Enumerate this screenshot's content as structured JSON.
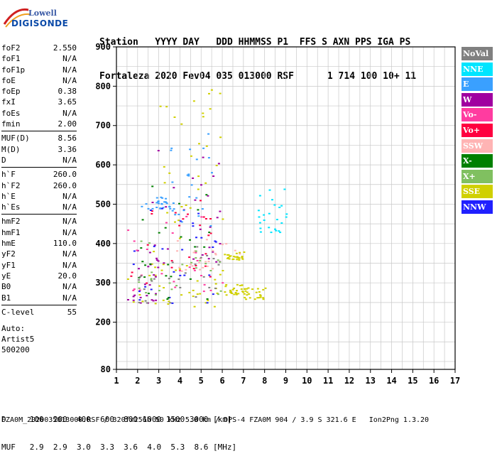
{
  "logo": {
    "line1": "Lowell",
    "line2": "DIGISONDE"
  },
  "header": {
    "line1": "Station   YYYY DAY   DDD HHMMSS P1  FFS S AXN PPS IGA PS",
    "line2": "Fortaleza 2020 Fev04 035 013000 RSF      1 714 100 10+ 11"
  },
  "params": [
    {
      "k": "foF2",
      "v": "2.550"
    },
    {
      "k": "foF1",
      "v": "N/A"
    },
    {
      "k": "foF1p",
      "v": "N/A"
    },
    {
      "k": "foE",
      "v": "N/A"
    },
    {
      "k": "foEp",
      "v": "0.38"
    },
    {
      "k": "fxI",
      "v": "3.65"
    },
    {
      "k": "foEs",
      "v": "N/A"
    },
    {
      "k": "fmin",
      "v": "2.00"
    },
    {
      "k": "MUF(D)",
      "v": "8.56"
    },
    {
      "k": "M(D)",
      "v": "3.36"
    },
    {
      "k": "D",
      "v": "N/A"
    },
    {
      "k": "h`F",
      "v": "260.0"
    },
    {
      "k": "h`F2",
      "v": "260.0"
    },
    {
      "k": "h`E",
      "v": "N/A"
    },
    {
      "k": "h`Es",
      "v": "N/A"
    },
    {
      "k": "hmF2",
      "v": "N/A"
    },
    {
      "k": "hmF1",
      "v": "N/A"
    },
    {
      "k": "hmE",
      "v": "110.0"
    },
    {
      "k": "yF2",
      "v": "N/A"
    },
    {
      "k": "yF1",
      "v": "N/A"
    },
    {
      "k": "yE",
      "v": "20.0"
    },
    {
      "k": "B0",
      "v": "N/A"
    },
    {
      "k": "B1",
      "v": "N/A"
    },
    {
      "k": "C-level",
      "v": "55"
    }
  ],
  "auto": {
    "l1": "Auto:",
    "l2": "Artist5",
    "l3": "500200"
  },
  "legend": [
    {
      "name": "NoVal",
      "color": "#808080"
    },
    {
      "name": "NNE",
      "color": "#00e5ff"
    },
    {
      "name": "E",
      "color": "#3aa0ff"
    },
    {
      "name": "W",
      "color": "#a000a0"
    },
    {
      "name": "Vo-",
      "color": "#ff3ca0"
    },
    {
      "name": "Vo+",
      "color": "#ff0040"
    },
    {
      "name": "SSW",
      "color": "#ffb4b4"
    },
    {
      "name": "X-",
      "color": "#008000"
    },
    {
      "name": "X+",
      "color": "#80c060"
    },
    {
      "name": "SSE",
      "color": "#d0d000"
    },
    {
      "name": "NNW",
      "color": "#2020ff"
    }
  ],
  "bottom": {
    "line1": "D     100  200  400  600  800 1000 1500 3000 [km]",
    "line2": "MUF   2.9  2.9  3.0  3.3  3.6  4.0  5.3  8.6 [MHz]"
  },
  "footer": "FZA0M_2020035013000.RSF / 320fx256h 50 kHz 5.0 km / DPS-4 FZA0M 904 / 3.9 S 321.6 E   Ion2Png 1.3.20",
  "chart_data": {
    "type": "scatter",
    "xlim": [
      1,
      17
    ],
    "ylim": [
      80,
      900
    ],
    "xticks": [
      1,
      2,
      3,
      4,
      5,
      6,
      7,
      8,
      9,
      10,
      11,
      12,
      13,
      14,
      15,
      16,
      17
    ],
    "yticks": [
      80,
      200,
      300,
      400,
      500,
      600,
      700,
      800,
      900
    ],
    "grid": true,
    "clusters": [
      {
        "name": "SSE",
        "color": "#d0d000",
        "x": [
          1.5,
          6.0
        ],
        "y": [
          240,
          320
        ]
      },
      {
        "name": "SSE",
        "color": "#d0d000",
        "x": [
          6.0,
          7.0
        ],
        "y": [
          270,
          300
        ]
      },
      {
        "name": "SSE",
        "color": "#d0d000",
        "x": [
          7.0,
          8.0
        ],
        "y": [
          260,
          290
        ]
      },
      {
        "name": "SSE",
        "color": "#d0d000",
        "x": [
          6.0,
          7.0
        ],
        "y": [
          360,
          380
        ]
      },
      {
        "name": "SSE",
        "color": "#d0d000",
        "x": [
          2.5,
          6.0
        ],
        "y": [
          320,
          800
        ]
      },
      {
        "name": "W",
        "color": "#a000a0",
        "x": [
          1.5,
          3.0
        ],
        "y": [
          250,
          400
        ]
      },
      {
        "name": "W",
        "color": "#a000a0",
        "x": [
          2.5,
          6.0
        ],
        "y": [
          350,
          660
        ]
      },
      {
        "name": "Vo-",
        "color": "#ff3ca0",
        "x": [
          1.5,
          6.0
        ],
        "y": [
          280,
          480
        ]
      },
      {
        "name": "Vo+",
        "color": "#ff0040",
        "x": [
          1.5,
          6.0
        ],
        "y": [
          300,
          520
        ]
      },
      {
        "name": "SSW",
        "color": "#ffb4b4",
        "x": [
          3.5,
          7.0
        ],
        "y": [
          330,
          430
        ]
      },
      {
        "name": "E",
        "color": "#3aa0ff",
        "x": [
          2.0,
          3.5
        ],
        "y": [
          490,
          520
        ]
      },
      {
        "name": "E",
        "color": "#3aa0ff",
        "x": [
          3.5,
          5.5
        ],
        "y": [
          440,
          700
        ]
      },
      {
        "name": "NNE",
        "color": "#00e5ff",
        "x": [
          7.5,
          9.0
        ],
        "y": [
          430,
          540
        ]
      },
      {
        "name": "NNW",
        "color": "#2020ff",
        "x": [
          1.5,
          6.0
        ],
        "y": [
          250,
          500
        ]
      },
      {
        "name": "X-",
        "color": "#008000",
        "x": [
          2.0,
          5.5
        ],
        "y": [
          260,
          560
        ]
      },
      {
        "name": "X+",
        "color": "#80c060",
        "x": [
          2.0,
          6.0
        ],
        "y": [
          270,
          420
        ]
      },
      {
        "name": "NoVal",
        "color": "#808080",
        "x": [
          2.0,
          6.0
        ],
        "y": [
          250,
          400
        ]
      }
    ]
  }
}
